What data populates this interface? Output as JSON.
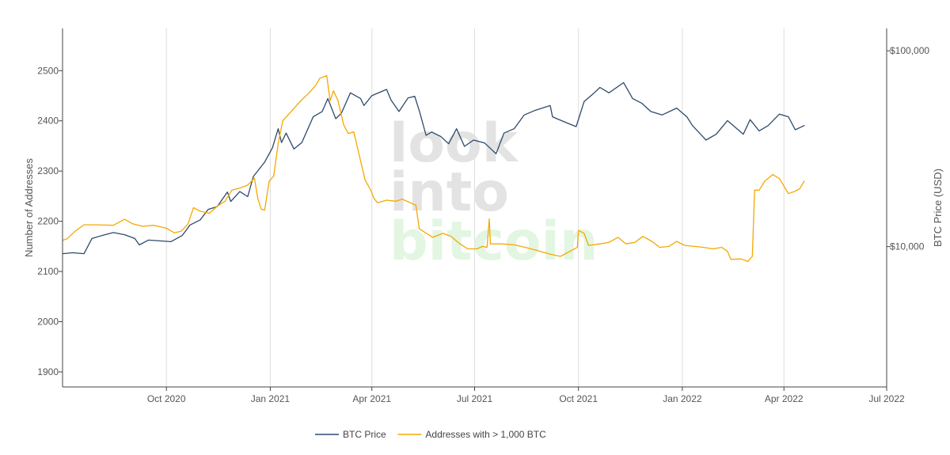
{
  "chart_data": {
    "type": "line",
    "x_axis": {
      "ticks": [
        {
          "date": "2020-10-01",
          "label": "Oct 2020"
        },
        {
          "date": "2021-01-01",
          "label": "Jan 2021"
        },
        {
          "date": "2021-04-01",
          "label": "Apr 2021"
        },
        {
          "date": "2021-07-01",
          "label": "Jul 2021"
        },
        {
          "date": "2021-10-01",
          "label": "Oct 2021"
        },
        {
          "date": "2022-01-01",
          "label": "Jan 2022"
        },
        {
          "date": "2022-04-01",
          "label": "Apr 2022"
        },
        {
          "date": "2022-07-01",
          "label": "Jul 2022"
        }
      ],
      "range": [
        "2020-07-01",
        "2022-07-01"
      ],
      "grid": true
    },
    "y_left": {
      "title": "Number of Addresses",
      "ticks": [
        {
          "value": 1900,
          "label": "1900"
        },
        {
          "value": 2000,
          "label": "2000"
        },
        {
          "value": 2100,
          "label": "2100"
        },
        {
          "value": 2200,
          "label": "2200"
        },
        {
          "value": 2300,
          "label": "2300"
        },
        {
          "value": 2400,
          "label": "2400"
        },
        {
          "value": 2500,
          "label": "2500"
        }
      ],
      "range": [
        1870,
        2584
      ]
    },
    "y_right": {
      "title": "BTC Price (USD)",
      "scale": "log",
      "ticks": [
        {
          "value": 10000,
          "label": "$10,000"
        },
        {
          "value": 100000,
          "label": "$100,000"
        }
      ],
      "range": [
        1920,
        130000
      ]
    },
    "legend_position": "bottom-center",
    "series": [
      {
        "name": "BTC Price",
        "axis": "right",
        "color": "#2e4a6b",
        "points": [
          [
            "2020-07-01",
            9200
          ],
          [
            "2020-07-10",
            9300
          ],
          [
            "2020-07-20",
            9200
          ],
          [
            "2020-07-27",
            11000
          ],
          [
            "2020-08-05",
            11400
          ],
          [
            "2020-08-15",
            11800
          ],
          [
            "2020-08-25",
            11500
          ],
          [
            "2020-09-03",
            11000
          ],
          [
            "2020-09-07",
            10200
          ],
          [
            "2020-09-15",
            10800
          ],
          [
            "2020-09-25",
            10700
          ],
          [
            "2020-10-05",
            10600
          ],
          [
            "2020-10-15",
            11400
          ],
          [
            "2020-10-22",
            12900
          ],
          [
            "2020-10-31",
            13700
          ],
          [
            "2020-11-07",
            15500
          ],
          [
            "2020-11-15",
            16000
          ],
          [
            "2020-11-24",
            19000
          ],
          [
            "2020-11-27",
            17000
          ],
          [
            "2020-12-05",
            19100
          ],
          [
            "2020-12-12",
            18000
          ],
          [
            "2020-12-17",
            22800
          ],
          [
            "2020-12-27",
            27000
          ],
          [
            "2021-01-03",
            32000
          ],
          [
            "2021-01-08",
            40000
          ],
          [
            "2021-01-11",
            34000
          ],
          [
            "2021-01-15",
            38000
          ],
          [
            "2021-01-22",
            31500
          ],
          [
            "2021-01-29",
            34000
          ],
          [
            "2021-02-08",
            46000
          ],
          [
            "2021-02-16",
            49000
          ],
          [
            "2021-02-21",
            57000
          ],
          [
            "2021-02-28",
            45000
          ],
          [
            "2021-03-05",
            48000
          ],
          [
            "2021-03-13",
            61000
          ],
          [
            "2021-03-22",
            57000
          ],
          [
            "2021-03-25",
            52500
          ],
          [
            "2021-04-01",
            59000
          ],
          [
            "2021-04-14",
            63500
          ],
          [
            "2021-04-18",
            56000
          ],
          [
            "2021-04-25",
            49000
          ],
          [
            "2021-05-03",
            57500
          ],
          [
            "2021-05-09",
            58500
          ],
          [
            "2021-05-13",
            49500
          ],
          [
            "2021-05-19",
            37000
          ],
          [
            "2021-05-24",
            38500
          ],
          [
            "2021-06-01",
            36500
          ],
          [
            "2021-06-08",
            33500
          ],
          [
            "2021-06-15",
            40000
          ],
          [
            "2021-06-22",
            32500
          ],
          [
            "2021-06-30",
            35000
          ],
          [
            "2021-07-10",
            33800
          ],
          [
            "2021-07-20",
            29800
          ],
          [
            "2021-07-27",
            38000
          ],
          [
            "2021-08-05",
            40000
          ],
          [
            "2021-08-14",
            47000
          ],
          [
            "2021-08-23",
            49500
          ],
          [
            "2021-09-06",
            52500
          ],
          [
            "2021-09-08",
            46000
          ],
          [
            "2021-09-20",
            43000
          ],
          [
            "2021-09-29",
            41000
          ],
          [
            "2021-10-06",
            55000
          ],
          [
            "2021-10-15",
            61000
          ],
          [
            "2021-10-20",
            65000
          ],
          [
            "2021-10-28",
            61000
          ],
          [
            "2021-11-08",
            67500
          ],
          [
            "2021-11-10",
            68800
          ],
          [
            "2021-11-18",
            57000
          ],
          [
            "2021-11-26",
            54000
          ],
          [
            "2021-12-04",
            49000
          ],
          [
            "2021-12-14",
            47000
          ],
          [
            "2021-12-27",
            51000
          ],
          [
            "2022-01-05",
            46000
          ],
          [
            "2022-01-10",
            41500
          ],
          [
            "2022-01-22",
            35000
          ],
          [
            "2022-01-31",
            37500
          ],
          [
            "2022-02-10",
            44000
          ],
          [
            "2022-02-24",
            37500
          ],
          [
            "2022-03-02",
            44500
          ],
          [
            "2022-03-10",
            39000
          ],
          [
            "2022-03-18",
            41500
          ],
          [
            "2022-03-28",
            47500
          ],
          [
            "2022-04-05",
            46000
          ],
          [
            "2022-04-11",
            39500
          ],
          [
            "2022-04-15",
            40500
          ],
          [
            "2022-04-19",
            41500
          ]
        ]
      },
      {
        "name": "Addresses with > 1,000 BTC",
        "axis": "left",
        "color": "#f5a800",
        "points": [
          [
            "2020-07-01",
            2162
          ],
          [
            "2020-07-05",
            2165
          ],
          [
            "2020-07-12",
            2180
          ],
          [
            "2020-07-20",
            2193
          ],
          [
            "2020-08-01",
            2193
          ],
          [
            "2020-08-15",
            2192
          ],
          [
            "2020-08-25",
            2204
          ],
          [
            "2020-09-01",
            2195
          ],
          [
            "2020-09-10",
            2190
          ],
          [
            "2020-09-20",
            2192
          ],
          [
            "2020-10-01",
            2186
          ],
          [
            "2020-10-08",
            2177
          ],
          [
            "2020-10-14",
            2180
          ],
          [
            "2020-10-20",
            2194
          ],
          [
            "2020-10-25",
            2227
          ],
          [
            "2020-10-31",
            2220
          ],
          [
            "2020-11-08",
            2216
          ],
          [
            "2020-11-15",
            2230
          ],
          [
            "2020-11-22",
            2240
          ],
          [
            "2020-11-28",
            2262
          ],
          [
            "2020-12-05",
            2266
          ],
          [
            "2020-12-12",
            2272
          ],
          [
            "2020-12-18",
            2286
          ],
          [
            "2020-12-21",
            2245
          ],
          [
            "2020-12-24",
            2224
          ],
          [
            "2020-12-27",
            2222
          ],
          [
            "2020-12-31",
            2280
          ],
          [
            "2021-01-04",
            2290
          ],
          [
            "2021-01-08",
            2355
          ],
          [
            "2021-01-12",
            2400
          ],
          [
            "2021-01-20",
            2420
          ],
          [
            "2021-01-28",
            2440
          ],
          [
            "2021-02-04",
            2455
          ],
          [
            "2021-02-10",
            2470
          ],
          [
            "2021-02-14",
            2485
          ],
          [
            "2021-02-20",
            2490
          ],
          [
            "2021-02-23",
            2440
          ],
          [
            "2021-02-26",
            2460
          ],
          [
            "2021-03-02",
            2440
          ],
          [
            "2021-03-07",
            2392
          ],
          [
            "2021-03-11",
            2375
          ],
          [
            "2021-03-16",
            2378
          ],
          [
            "2021-03-22",
            2320
          ],
          [
            "2021-03-26",
            2282
          ],
          [
            "2021-03-31",
            2262
          ],
          [
            "2021-04-03",
            2245
          ],
          [
            "2021-04-06",
            2237
          ],
          [
            "2021-04-14",
            2242
          ],
          [
            "2021-04-22",
            2240
          ],
          [
            "2021-04-28",
            2244
          ],
          [
            "2021-05-05",
            2237
          ],
          [
            "2021-05-10",
            2232
          ],
          [
            "2021-05-13",
            2185
          ],
          [
            "2021-05-20",
            2175
          ],
          [
            "2021-05-25",
            2168
          ],
          [
            "2021-06-03",
            2176
          ],
          [
            "2021-06-10",
            2170
          ],
          [
            "2021-06-18",
            2155
          ],
          [
            "2021-06-25",
            2145
          ],
          [
            "2021-07-03",
            2145
          ],
          [
            "2021-07-08",
            2150
          ],
          [
            "2021-07-12",
            2148
          ],
          [
            "2021-07-14",
            2205
          ],
          [
            "2021-07-15",
            2155
          ],
          [
            "2021-07-25",
            2155
          ],
          [
            "2021-08-05",
            2153
          ],
          [
            "2021-08-15",
            2148
          ],
          [
            "2021-08-25",
            2142
          ],
          [
            "2021-09-05",
            2135
          ],
          [
            "2021-09-15",
            2130
          ],
          [
            "2021-09-25",
            2142
          ],
          [
            "2021-09-30",
            2148
          ],
          [
            "2021-10-01",
            2182
          ],
          [
            "2021-10-06",
            2176
          ],
          [
            "2021-10-10",
            2152
          ],
          [
            "2021-10-20",
            2155
          ],
          [
            "2021-10-28",
            2158
          ],
          [
            "2021-11-05",
            2168
          ],
          [
            "2021-11-12",
            2155
          ],
          [
            "2021-11-20",
            2158
          ],
          [
            "2021-11-27",
            2170
          ],
          [
            "2021-12-05",
            2160
          ],
          [
            "2021-12-12",
            2148
          ],
          [
            "2021-12-20",
            2150
          ],
          [
            "2021-12-27",
            2160
          ],
          [
            "2022-01-03",
            2152
          ],
          [
            "2022-01-12",
            2150
          ],
          [
            "2022-01-20",
            2148
          ],
          [
            "2022-01-28",
            2145
          ],
          [
            "2022-02-05",
            2148
          ],
          [
            "2022-02-10",
            2140
          ],
          [
            "2022-02-13",
            2124
          ],
          [
            "2022-02-22",
            2125
          ],
          [
            "2022-02-28",
            2120
          ],
          [
            "2022-03-04",
            2130
          ],
          [
            "2022-03-06",
            2262
          ],
          [
            "2022-03-10",
            2262
          ],
          [
            "2022-03-15",
            2280
          ],
          [
            "2022-03-22",
            2293
          ],
          [
            "2022-03-28",
            2285
          ],
          [
            "2022-04-01",
            2270
          ],
          [
            "2022-04-05",
            2255
          ],
          [
            "2022-04-11",
            2260
          ],
          [
            "2022-04-15",
            2265
          ],
          [
            "2022-04-19",
            2280
          ]
        ]
      }
    ]
  }
}
